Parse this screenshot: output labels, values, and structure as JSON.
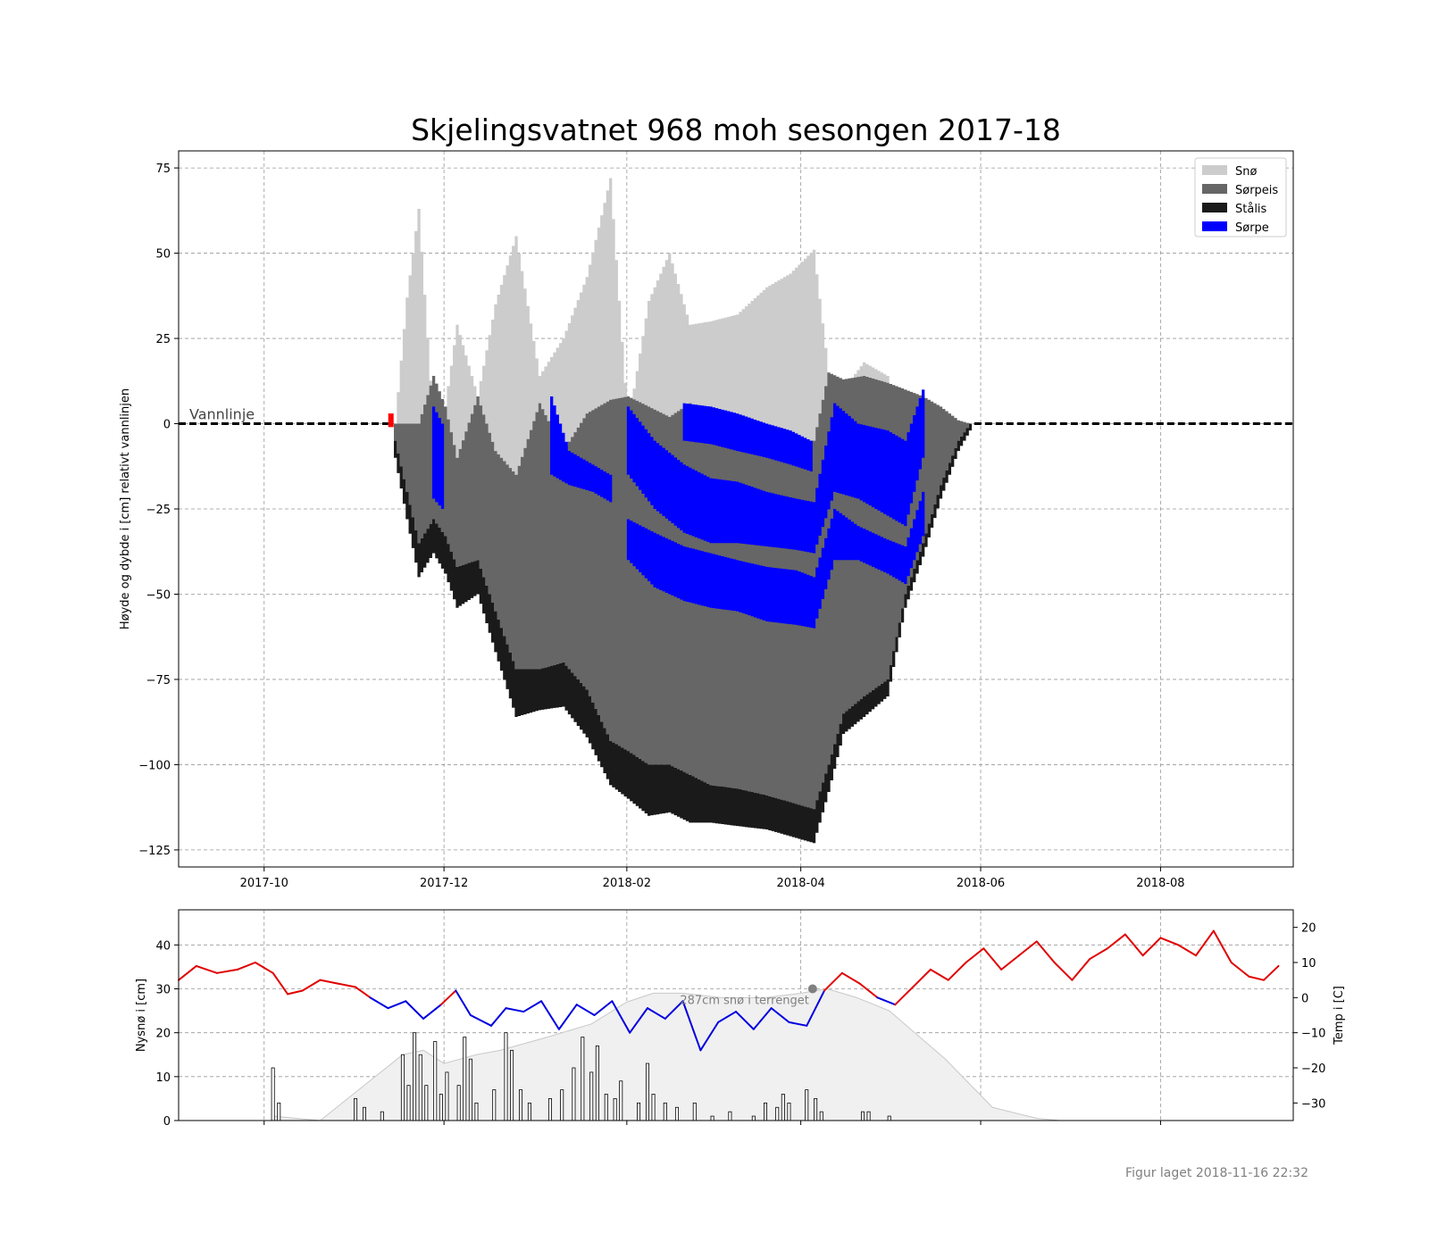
{
  "colors": {
    "snow": "#cccccc",
    "slush_ice": "#666666",
    "black_ice": "#1a1a1a",
    "slush": "#0000ff",
    "freeze_marker": "#ff0000",
    "temp_warm": "#e00000",
    "temp_cold": "#0000e0",
    "grid": "#999999",
    "terrain_snow": "#f0f0f0",
    "terrain_outline": "#c8c8c8",
    "annotation": "#808080"
  },
  "footer": "Figur laget 2018-11-16 22:32",
  "chart_data": [
    {
      "type": "area",
      "title": "Skjelingsvatnet 968 moh sesongen 2017-18",
      "xlabel": "",
      "ylabel": "Høyde og dybde i [cm] relativt vannlinjen",
      "xlim": [
        "2017-09-02",
        "2018-09-15"
      ],
      "ylim": [
        -130,
        80
      ],
      "yticks": [
        75,
        50,
        25,
        0,
        -25,
        -50,
        -75,
        -100,
        -125
      ],
      "ytick_labels": [
        "75",
        "50",
        "25",
        "0",
        "−25",
        "−50",
        "−75",
        "−100",
        "−125"
      ],
      "xticks": [
        "2017-10-01",
        "2017-12-01",
        "2018-02-01",
        "2018-04-01",
        "2018-06-01",
        "2018-08-01"
      ],
      "xtick_labels": [
        "2017-10",
        "2017-12",
        "2018-02",
        "2018-04",
        "2018-06",
        "2018-08"
      ],
      "grid": true,
      "legend_position": "top-right",
      "waterline_label": "Vannlinje",
      "legend": [
        "Snø",
        "Sørpeis",
        "Stålis",
        "Sørpe"
      ],
      "freeze_marker": {
        "date": "2017-11-13",
        "top": 3,
        "bottom": -1
      },
      "layers": {
        "dates": [
          "2017-11-14",
          "2017-11-18",
          "2017-11-22",
          "2017-11-27",
          "2017-12-01",
          "2017-12-05",
          "2017-12-12",
          "2017-12-18",
          "2017-12-25",
          "2018-01-02",
          "2018-01-10",
          "2018-01-18",
          "2018-01-26",
          "2018-02-01",
          "2018-02-08",
          "2018-02-15",
          "2018-02-22",
          "2018-03-01",
          "2018-03-10",
          "2018-03-20",
          "2018-03-28",
          "2018-04-05",
          "2018-04-10",
          "2018-04-15",
          "2018-04-22",
          "2018-04-30",
          "2018-05-06",
          "2018-05-12",
          "2018-05-18",
          "2018-05-24",
          "2018-05-28"
        ],
        "snow_top": [
          0,
          37,
          63,
          0,
          5,
          29,
          8,
          35,
          55,
          14,
          25,
          43,
          72,
          0,
          36,
          50,
          29,
          30,
          32,
          40,
          44,
          51,
          15,
          10,
          18,
          14,
          0,
          0,
          0,
          0,
          0
        ],
        "ice_top": [
          0,
          0,
          0,
          14,
          5,
          -10,
          8,
          -8,
          -15,
          6,
          -8,
          3,
          7,
          8,
          5,
          2,
          6,
          -2,
          -5,
          -2,
          -5,
          -5,
          15,
          13,
          14,
          12,
          10,
          8,
          5,
          1,
          0
        ],
        "ice_bottom": [
          -5,
          -20,
          -35,
          -28,
          -33,
          -42,
          -40,
          -55,
          -72,
          -72,
          -70,
          -78,
          -93,
          -96,
          -100,
          -100,
          -103,
          -106,
          -107,
          -109,
          -111,
          -113,
          -100,
          -85,
          -80,
          -75,
          -50,
          -35,
          -18,
          -5,
          0
        ],
        "black_ice_thickness": [
          5,
          8,
          10,
          10,
          11,
          12,
          10,
          12,
          14,
          12,
          13,
          14,
          13,
          14,
          15,
          14,
          14,
          11,
          11,
          10,
          10,
          10,
          8,
          6,
          6,
          5,
          4,
          4,
          4,
          3,
          2
        ]
      },
      "slush_bands": [
        {
          "dates": [
            "2017-11-27",
            "2017-11-30"
          ],
          "top": [
            5,
            0
          ],
          "bottom": [
            -22,
            -25
          ]
        },
        {
          "dates": [
            "2018-01-06",
            "2018-01-12",
            "2018-01-20",
            "2018-01-26"
          ],
          "top": [
            8,
            -8,
            -12,
            -15
          ],
          "bottom": [
            -15,
            -18,
            -20,
            -23
          ]
        },
        {
          "dates": [
            "2018-02-01",
            "2018-02-10",
            "2018-02-20",
            "2018-03-01",
            "2018-03-10",
            "2018-03-20",
            "2018-03-30",
            "2018-04-05",
            "2018-04-12",
            "2018-04-20",
            "2018-04-30",
            "2018-05-06",
            "2018-05-12"
          ],
          "top": [
            5,
            -5,
            -12,
            -16,
            -17,
            -20,
            -22,
            -23,
            6,
            0,
            -2,
            -5,
            10
          ],
          "bottom": [
            -15,
            -25,
            -32,
            -35,
            -35,
            -36,
            -37,
            -38,
            -20,
            -22,
            -27,
            -30,
            -10
          ]
        },
        {
          "dates": [
            "2018-02-01",
            "2018-02-10",
            "2018-02-20",
            "2018-03-01",
            "2018-03-10",
            "2018-03-20",
            "2018-03-30",
            "2018-04-05",
            "2018-04-12",
            "2018-04-20",
            "2018-04-30",
            "2018-05-06",
            "2018-05-12"
          ],
          "top": [
            -28,
            -32,
            -36,
            -38,
            -40,
            -42,
            -43,
            -45,
            -25,
            -30,
            -34,
            -36,
            -20
          ],
          "bottom": [
            -40,
            -48,
            -52,
            -54,
            -55,
            -58,
            -59,
            -60,
            -40,
            -40,
            -44,
            -47,
            -33
          ]
        },
        {
          "dates": [
            "2018-02-20",
            "2018-03-01",
            "2018-03-10",
            "2018-03-20",
            "2018-03-28",
            "2018-04-04"
          ],
          "top": [
            6,
            5,
            3,
            0,
            -2,
            -5
          ],
          "bottom": [
            -5,
            -6,
            -8,
            -10,
            -12,
            -14
          ]
        }
      ]
    },
    {
      "type": "bar",
      "ylabel": "Nysnø i [cm]",
      "y2label": "Temp i [C]",
      "xlim": [
        "2017-09-02",
        "2018-09-15"
      ],
      "ylim": [
        0,
        48
      ],
      "y2lim": [
        -35,
        25
      ],
      "yticks": [
        0,
        10,
        20,
        30,
        40
      ],
      "ytick_labels": [
        "0",
        "10",
        "20",
        "30",
        "40"
      ],
      "y2ticks": [
        20,
        10,
        0,
        -10,
        -20,
        -30
      ],
      "y2tick_labels": [
        "20",
        "10",
        "0",
        "−10",
        "−20",
        "−30"
      ],
      "grid": true,
      "annotation": {
        "text": "287cm snø i terrenget",
        "date": "2018-04-05",
        "value": 30
      },
      "new_snow": {
        "x": [
          "2017-10-04",
          "2017-10-06",
          "2017-11-01",
          "2017-11-04",
          "2017-11-10",
          "2017-11-17",
          "2017-11-19",
          "2017-11-21",
          "2017-11-23",
          "2017-11-25",
          "2017-11-28",
          "2017-11-30",
          "2017-12-02",
          "2017-12-06",
          "2017-12-08",
          "2017-12-10",
          "2017-12-12",
          "2017-12-18",
          "2017-12-22",
          "2017-12-24",
          "2017-12-27",
          "2017-12-30",
          "2018-01-06",
          "2018-01-10",
          "2018-01-14",
          "2018-01-17",
          "2018-01-20",
          "2018-01-22",
          "2018-01-25",
          "2018-01-28",
          "2018-01-30",
          "2018-02-05",
          "2018-02-08",
          "2018-02-10",
          "2018-02-14",
          "2018-02-18",
          "2018-02-24",
          "2018-03-02",
          "2018-03-08",
          "2018-03-16",
          "2018-03-20",
          "2018-03-24",
          "2018-03-26",
          "2018-03-28",
          "2018-04-03",
          "2018-04-06",
          "2018-04-08",
          "2018-04-22",
          "2018-04-24",
          "2018-05-01"
        ],
        "values": [
          12,
          4,
          5,
          3,
          2,
          15,
          8,
          20,
          15,
          8,
          18,
          6,
          11,
          8,
          19,
          14,
          4,
          7,
          20,
          16,
          7,
          4,
          5,
          7,
          12,
          19,
          11,
          17,
          6,
          5,
          9,
          4,
          13,
          6,
          4,
          3,
          4,
          1,
          2,
          1,
          4,
          3,
          6,
          4,
          7,
          5,
          2,
          2,
          2,
          1
        ]
      },
      "terrain_snow": {
        "x": [
          "2017-10-04",
          "2017-10-20",
          "2017-11-17",
          "2017-11-24",
          "2017-12-01",
          "2017-12-12",
          "2017-12-20",
          "2018-01-05",
          "2018-01-20",
          "2018-02-01",
          "2018-02-10",
          "2018-02-20",
          "2018-03-05",
          "2018-03-20",
          "2018-04-01",
          "2018-04-10",
          "2018-04-20",
          "2018-05-01",
          "2018-05-20",
          "2018-06-05",
          "2018-06-20",
          "2018-06-28"
        ],
        "values": [
          1,
          0,
          15,
          16,
          13,
          15,
          16,
          19,
          22,
          27,
          29,
          29,
          28,
          28,
          29,
          30,
          28,
          25,
          14,
          3,
          0.5,
          0
        ]
      },
      "temperature": {
        "x": [
          "2017-09-02",
          "2017-09-08",
          "2017-09-15",
          "2017-09-22",
          "2017-09-28",
          "2017-10-04",
          "2017-10-09",
          "2017-10-14",
          "2017-10-20",
          "2017-10-26",
          "2017-11-01",
          "2017-11-06",
          "2017-11-12",
          "2017-11-18",
          "2017-11-24",
          "2017-11-30",
          "2017-12-05",
          "2017-12-10",
          "2017-12-17",
          "2017-12-22",
          "2017-12-28",
          "2018-01-03",
          "2018-01-09",
          "2018-01-15",
          "2018-01-21",
          "2018-01-27",
          "2018-02-02",
          "2018-02-08",
          "2018-02-14",
          "2018-02-20",
          "2018-02-26",
          "2018-03-04",
          "2018-03-10",
          "2018-03-16",
          "2018-03-22",
          "2018-03-28",
          "2018-04-03",
          "2018-04-09",
          "2018-04-15",
          "2018-04-21",
          "2018-04-27",
          "2018-05-03",
          "2018-05-09",
          "2018-05-15",
          "2018-05-21",
          "2018-05-27",
          "2018-06-02",
          "2018-06-08",
          "2018-06-14",
          "2018-06-20",
          "2018-06-26",
          "2018-07-02",
          "2018-07-08",
          "2018-07-14",
          "2018-07-20",
          "2018-07-26",
          "2018-08-01",
          "2018-08-07",
          "2018-08-13",
          "2018-08-19",
          "2018-08-25",
          "2018-08-31",
          "2018-09-05",
          "2018-09-10"
        ],
        "values": [
          5,
          9,
          7,
          8,
          10,
          7,
          1,
          2,
          5,
          4,
          3,
          0,
          -3,
          -1,
          -6,
          -2,
          2,
          -5,
          -8,
          -3,
          -4,
          -1,
          -9,
          -2,
          -5,
          -1,
          -10,
          -3,
          -6,
          -1,
          -15,
          -7,
          -4,
          -9,
          -3,
          -7,
          -8,
          2,
          7,
          4,
          0,
          -2,
          3,
          8,
          5,
          10,
          14,
          8,
          12,
          16,
          10,
          5,
          11,
          14,
          18,
          12,
          17,
          15,
          12,
          19,
          10,
          6,
          5,
          9
        ]
      }
    }
  ]
}
